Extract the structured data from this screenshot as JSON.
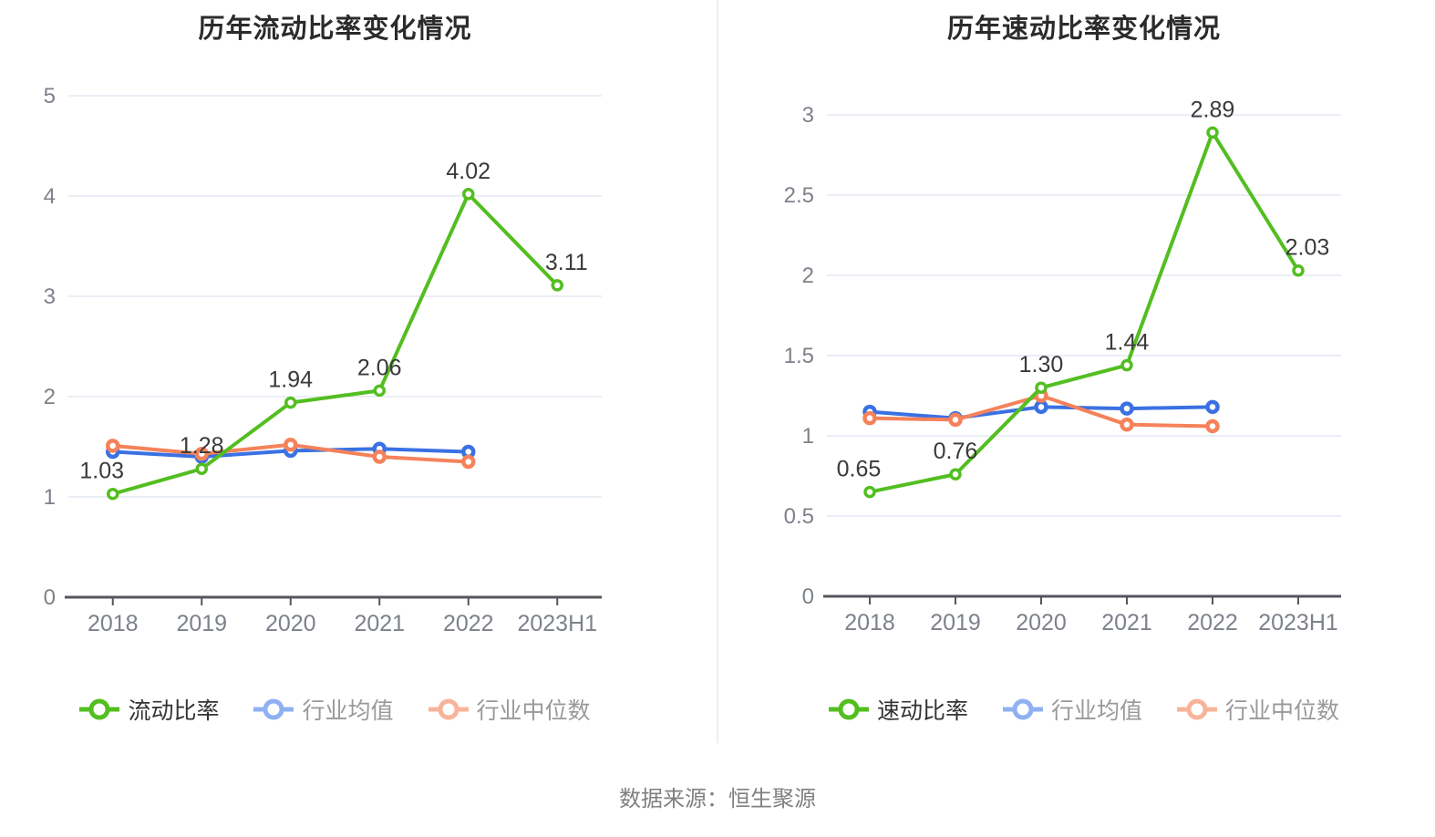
{
  "page": {
    "source_note": "数据来源：恒生聚源"
  },
  "palette": {
    "green": "#53be20",
    "blue": "#3a71e3",
    "orange": "#f5825a",
    "legend_blue": "#8fb0f2",
    "legend_orange": "#f8b49a",
    "grid": "#e4e8f2",
    "axis": "#54575d",
    "tick_label": "#7d818a",
    "data_label": "#3a3a3a",
    "title": "#2b2b2b",
    "legend_text_primary": "#333333",
    "legend_text_secondary": "#999999",
    "source_text": "#808080",
    "divider": "#eeeeee",
    "background": "#ffffff"
  },
  "chart_data": [
    {
      "type": "line",
      "title": "历年流动比率变化情况",
      "categories": [
        "2018",
        "2019",
        "2020",
        "2021",
        "2022",
        "2023H1"
      ],
      "xlabel": "",
      "ylabel": "",
      "ylim": [
        0,
        5
      ],
      "yticks": [
        0,
        1,
        2,
        3,
        4,
        5
      ],
      "ytick_labels": [
        "0",
        "1",
        "2",
        "3",
        "4",
        "5"
      ],
      "grid": true,
      "legend_position": "bottom",
      "series": [
        {
          "name": "流动比率",
          "color_key": "green",
          "legend_color_key": "green",
          "legend_text_key": "legend_text_primary",
          "values": [
            1.03,
            1.28,
            1.94,
            2.06,
            4.02,
            3.11
          ],
          "point_labels": [
            "1.03",
            "1.28",
            "1.94",
            "2.06",
            "4.02",
            "3.11"
          ]
        },
        {
          "name": "行业均值",
          "color_key": "blue",
          "legend_color_key": "legend_blue",
          "legend_text_key": "legend_text_secondary",
          "values": [
            1.45,
            1.4,
            1.46,
            1.48,
            1.45
          ],
          "point_labels": []
        },
        {
          "name": "行业中位数",
          "color_key": "orange",
          "legend_color_key": "legend_orange",
          "legend_text_key": "legend_text_secondary",
          "values": [
            1.51,
            1.43,
            1.52,
            1.4,
            1.35
          ],
          "point_labels": []
        }
      ]
    },
    {
      "type": "line",
      "title": "历年速动比率变化情况",
      "categories": [
        "2018",
        "2019",
        "2020",
        "2021",
        "2022",
        "2023H1"
      ],
      "xlabel": "",
      "ylabel": "",
      "ylim": [
        0,
        3
      ],
      "yticks": [
        0,
        0.5,
        1,
        1.5,
        2,
        2.5,
        3
      ],
      "ytick_labels": [
        "0",
        "0.5",
        "1",
        "1.5",
        "2",
        "2.5",
        "3"
      ],
      "grid": true,
      "legend_position": "bottom",
      "series": [
        {
          "name": "速动比率",
          "color_key": "green",
          "legend_color_key": "green",
          "legend_text_key": "legend_text_primary",
          "values": [
            0.65,
            0.76,
            1.3,
            1.44,
            2.89,
            2.03
          ],
          "point_labels": [
            "0.65",
            "0.76",
            "1.30",
            "1.44",
            "2.89",
            "2.03"
          ]
        },
        {
          "name": "行业均值",
          "color_key": "blue",
          "legend_color_key": "legend_blue",
          "legend_text_key": "legend_text_secondary",
          "values": [
            1.15,
            1.11,
            1.18,
            1.17,
            1.18
          ],
          "point_labels": []
        },
        {
          "name": "行业中位数",
          "color_key": "orange",
          "legend_color_key": "legend_orange",
          "legend_text_key": "legend_text_secondary",
          "values": [
            1.11,
            1.1,
            1.25,
            1.07,
            1.06
          ],
          "point_labels": []
        }
      ]
    }
  ]
}
